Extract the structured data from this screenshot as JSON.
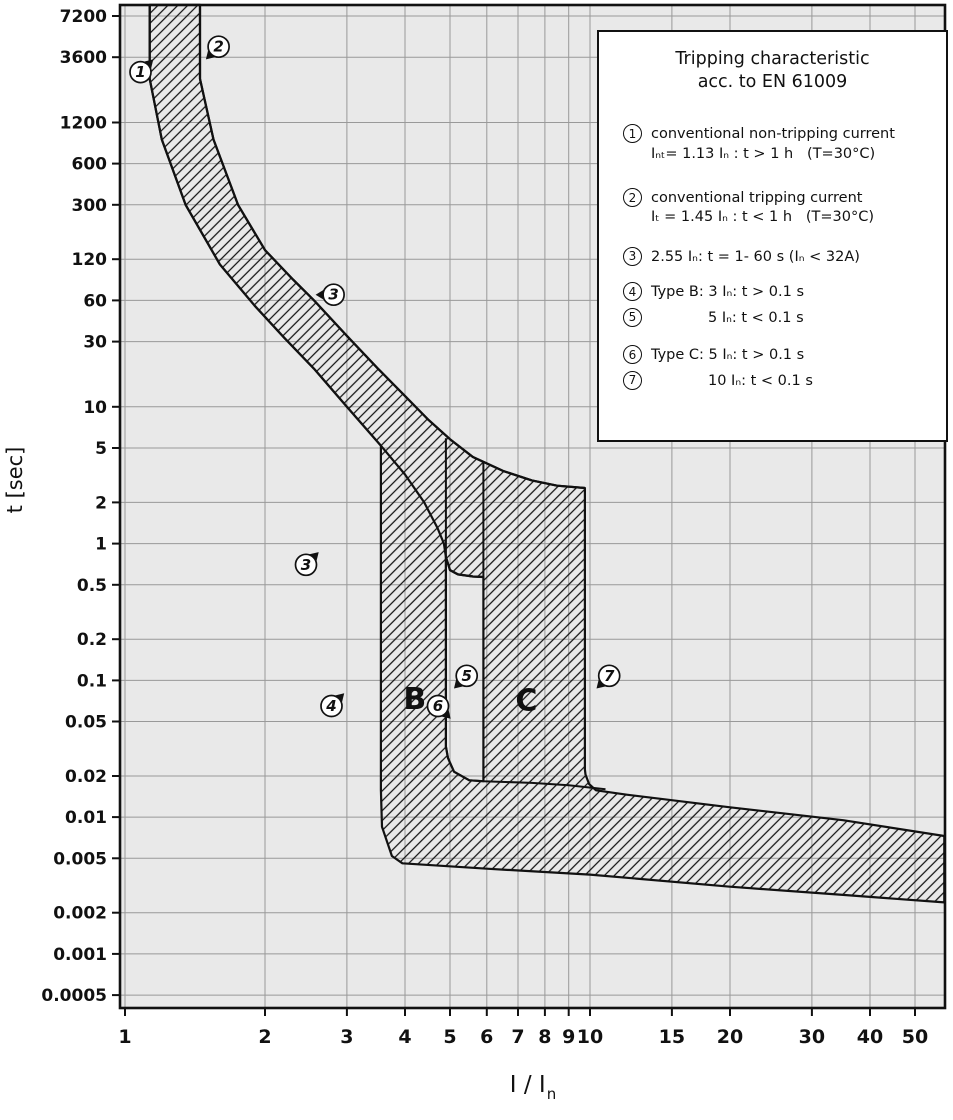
{
  "chart_data": {
    "type": "line",
    "title": "Tripping characteristic acc. to EN 61009",
    "xlabel_main": "I / I",
    "xlabel_sub": "n",
    "ylabel": "t [sec]",
    "x_scale": "log",
    "y_scale": "log",
    "xlim": [
      1,
      57
    ],
    "ylim": [
      0.0005,
      7200
    ],
    "grid": true,
    "x_ticks": [
      1,
      2,
      3,
      4,
      5,
      6,
      7,
      8,
      9,
      10,
      15,
      20,
      30,
      40,
      50
    ],
    "y_ticks": [
      "7200",
      "3600",
      "1200",
      "600",
      "300",
      "120",
      "60",
      "30",
      "10",
      "5",
      "2",
      "1",
      "0.5",
      "0.2",
      "0.1",
      "0.05",
      "0.02",
      "0.01",
      "0.005",
      "0.002",
      "0.001",
      "0.0005"
    ],
    "conventional_non_tripping_current_In": 1.13,
    "conventional_tripping_current_In": 1.45,
    "type_b_instantaneous_range_In": [
      3,
      5
    ],
    "type_c_instantaneous_range_In": [
      5,
      10
    ],
    "series": [
      {
        "name": "curve-1 conventional non-tripping limit (1.13 In)",
        "points": [
          [
            1.13,
            8700
          ],
          [
            1.13,
            2500
          ],
          [
            1.2,
            900
          ],
          [
            1.35,
            300
          ],
          [
            1.6,
            110
          ],
          [
            1.9,
            55
          ],
          [
            2.2,
            32
          ],
          [
            2.55,
            19
          ],
          [
            3.0,
            10
          ],
          [
            3.55,
            5.2
          ],
          [
            4.0,
            3.2
          ],
          [
            4.4,
            2.0
          ],
          [
            4.7,
            1.3
          ],
          [
            4.85,
            1.0
          ],
          [
            4.9,
            0.8
          ],
          [
            5.0,
            0.64
          ],
          [
            5.2,
            0.595
          ],
          [
            5.6,
            0.575
          ],
          [
            5.9,
            0.57
          ]
        ]
      },
      {
        "name": "curve-2 conventional tripping limit (1.45 In)",
        "points": [
          [
            1.45,
            8700
          ],
          [
            1.45,
            2500
          ],
          [
            1.55,
            900
          ],
          [
            1.75,
            300
          ],
          [
            2.0,
            140
          ],
          [
            2.3,
            85
          ],
          [
            2.55,
            60
          ],
          [
            3.0,
            33
          ],
          [
            3.5,
            19
          ],
          [
            4.0,
            12
          ],
          [
            4.5,
            8.0
          ],
          [
            5.0,
            5.8
          ],
          [
            5.6,
            4.3
          ],
          [
            6.5,
            3.4
          ],
          [
            7.5,
            2.9
          ],
          [
            8.5,
            2.65
          ],
          [
            9.75,
            2.55
          ]
        ]
      }
    ],
    "band_outline": [
      [
        1.13,
        8700
      ],
      [
        1.13,
        2500
      ],
      [
        1.2,
        900
      ],
      [
        1.35,
        300
      ],
      [
        1.6,
        110
      ],
      [
        1.9,
        55
      ],
      [
        2.2,
        32
      ],
      [
        2.55,
        19
      ],
      [
        3.0,
        10
      ],
      [
        3.55,
        5.2
      ],
      [
        3.55,
        0.0158
      ],
      [
        3.57,
        0.0085
      ],
      [
        3.75,
        0.0052
      ],
      [
        3.95,
        0.0046
      ],
      [
        6.0,
        0.0042
      ],
      [
        10,
        0.0038
      ],
      [
        20,
        0.0031
      ],
      [
        35,
        0.0027
      ],
      [
        57.8,
        0.00238
      ],
      [
        57.8,
        0.00728
      ],
      [
        35,
        0.0095
      ],
      [
        20,
        0.0118
      ],
      [
        12,
        0.0146
      ],
      [
        10.3,
        0.0157
      ],
      [
        9.95,
        0.0175
      ],
      [
        9.78,
        0.0205
      ],
      [
        9.75,
        0.0223
      ],
      [
        9.75,
        2.55
      ],
      [
        8.5,
        2.65
      ],
      [
        7.5,
        2.9
      ],
      [
        6.5,
        3.4
      ],
      [
        5.6,
        4.3
      ],
      [
        5.0,
        5.8
      ],
      [
        4.5,
        8.0
      ],
      [
        4.0,
        12
      ],
      [
        3.5,
        19
      ],
      [
        3.0,
        33
      ],
      [
        2.55,
        60
      ],
      [
        2.3,
        85
      ],
      [
        2.0,
        140
      ],
      [
        1.75,
        300
      ],
      [
        1.55,
        900
      ],
      [
        1.45,
        2500
      ],
      [
        1.45,
        8700
      ]
    ],
    "band_hole": [
      [
        4.9,
        0.8
      ],
      [
        5.0,
        0.64
      ],
      [
        5.2,
        0.595
      ],
      [
        5.6,
        0.575
      ],
      [
        5.9,
        0.57
      ],
      [
        5.9,
        0.0183
      ],
      [
        5.5,
        0.0186
      ],
      [
        5.1,
        0.0215
      ],
      [
        4.95,
        0.027
      ],
      [
        4.9,
        0.0328
      ]
    ],
    "internal_lines": [
      [
        [
          4.9,
          5.9
        ],
        [
          4.9,
          0.0328
        ],
        [
          4.95,
          0.027
        ],
        [
          5.1,
          0.0215
        ],
        [
          5.5,
          0.0186
        ],
        [
          5.9,
          0.0183
        ],
        [
          7.5,
          0.0178
        ],
        [
          9.0,
          0.0171
        ],
        [
          10.8,
          0.016
        ]
      ],
      [
        [
          5.9,
          3.9
        ],
        [
          5.9,
          0.57
        ]
      ]
    ],
    "annotations": {
      "letters": [
        {
          "text": "B",
          "x": 4.2,
          "y": 0.0615
        },
        {
          "text": "C",
          "x": 7.3,
          "y": 0.06
        }
      ],
      "markers": [
        {
          "label": "1",
          "x": 1.08,
          "y": 2800,
          "arrow": "ne"
        },
        {
          "label": "2",
          "x": 1.59,
          "y": 4300,
          "arrow": "sw"
        },
        {
          "label": "3",
          "x": 2.81,
          "y": 66,
          "arrow": "w"
        },
        {
          "label": "3",
          "x": 2.45,
          "y": 0.7,
          "arrow": "ne"
        },
        {
          "label": "4",
          "x": 2.78,
          "y": 0.065,
          "arrow": "ne"
        },
        {
          "label": "5",
          "x": 5.43,
          "y": 0.108,
          "arrow": "sw"
        },
        {
          "label": "6",
          "x": 4.71,
          "y": 0.065,
          "arrow": "se"
        },
        {
          "label": "7",
          "x": 11.0,
          "y": 0.108,
          "arrow": "sw"
        }
      ]
    }
  },
  "legend": {
    "title_line1": "Tripping characteristic",
    "title_line2": "acc. to EN 61009",
    "items": [
      {
        "num": "1",
        "line1": "conventional non-tripping current",
        "line2": "Iₙₜ= 1.13 Iₙ : t > 1 h   (T=30°C)"
      },
      {
        "num": "2",
        "line1": "conventional tripping current",
        "line2": "Iₜ = 1.45 Iₙ : t < 1 h   (T=30°C)"
      },
      {
        "num": "3",
        "line1": "2.55 Iₙ: t = 1- 60 s (Iₙ < 32A)"
      },
      {
        "num": "4",
        "line1": "Type B: 3 Iₙ: t > 0.1 s"
      },
      {
        "num": "5",
        "line1": "5 Iₙ: t < 0.1 s"
      },
      {
        "num": "6",
        "line1": "Type C: 5 Iₙ: t > 0.1 s"
      },
      {
        "num": "7",
        "line1": "10 Iₙ: t < 0.1 s"
      }
    ]
  }
}
